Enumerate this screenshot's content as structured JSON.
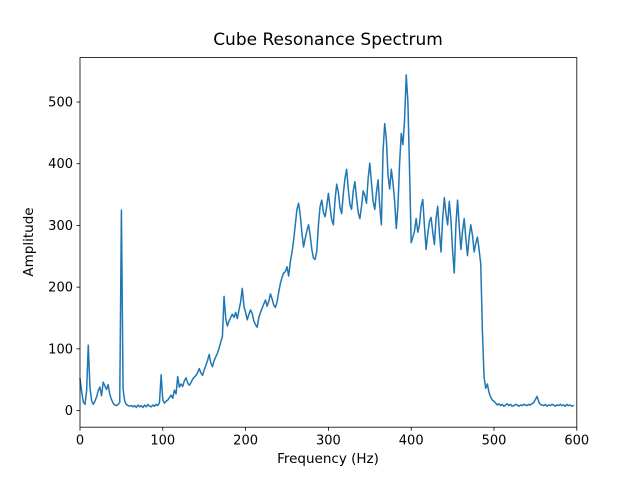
{
  "figure": {
    "background": "#ffffff",
    "line_color": "#1f77b4",
    "spine_color": "#000000",
    "text_color": "#000000"
  },
  "chart_data": {
    "type": "line",
    "title": "Cube Resonance Spectrum",
    "xlabel": "Frequency (Hz)",
    "ylabel": "Amplitude",
    "xlim": [
      0,
      600
    ],
    "ylim": [
      -27,
      572
    ],
    "xticks": [
      0,
      100,
      200,
      300,
      400,
      500,
      600
    ],
    "yticks": [
      0,
      100,
      200,
      300,
      400,
      500
    ],
    "grid": false,
    "legend": false,
    "series": [
      {
        "name": "spectrum",
        "color": "#1f77b4",
        "x": [
          0,
          2,
          4,
          6,
          8,
          10,
          12,
          14,
          16,
          18,
          20,
          22,
          24,
          26,
          28,
          30,
          32,
          34,
          36,
          38,
          40,
          42,
          44,
          46,
          48,
          50,
          52,
          54,
          56,
          58,
          60,
          62,
          64,
          66,
          68,
          70,
          72,
          74,
          76,
          78,
          80,
          82,
          84,
          86,
          88,
          90,
          92,
          94,
          96,
          98,
          100,
          102,
          104,
          106,
          108,
          110,
          112,
          114,
          116,
          118,
          120,
          122,
          124,
          126,
          128,
          130,
          132,
          134,
          136,
          138,
          140,
          142,
          144,
          146,
          148,
          150,
          152,
          154,
          156,
          158,
          160,
          162,
          164,
          166,
          168,
          170,
          172,
          174,
          176,
          178,
          180,
          182,
          184,
          186,
          188,
          190,
          192,
          194,
          196,
          198,
          200,
          202,
          204,
          206,
          208,
          210,
          212,
          214,
          216,
          218,
          220,
          222,
          224,
          226,
          228,
          230,
          232,
          234,
          236,
          238,
          240,
          242,
          244,
          246,
          248,
          250,
          252,
          254,
          256,
          258,
          260,
          262,
          264,
          266,
          268,
          270,
          272,
          274,
          276,
          278,
          280,
          282,
          284,
          286,
          288,
          290,
          292,
          294,
          296,
          298,
          300,
          302,
          304,
          306,
          308,
          310,
          312,
          314,
          316,
          318,
          320,
          322,
          324,
          326,
          328,
          330,
          332,
          334,
          336,
          338,
          340,
          342,
          344,
          346,
          348,
          350,
          352,
          354,
          356,
          358,
          360,
          362,
          364,
          366,
          368,
          370,
          372,
          374,
          376,
          378,
          380,
          382,
          384,
          386,
          388,
          390,
          392,
          394,
          396,
          398,
          400,
          402,
          404,
          406,
          408,
          410,
          412,
          414,
          416,
          418,
          420,
          422,
          424,
          426,
          428,
          430,
          432,
          434,
          436,
          438,
          440,
          442,
          444,
          446,
          448,
          450,
          452,
          454,
          456,
          458,
          460,
          462,
          464,
          466,
          468,
          470,
          472,
          474,
          476,
          478,
          480,
          482,
          484,
          486,
          488,
          490,
          492,
          494,
          496,
          498,
          500,
          502,
          504,
          506,
          508,
          510,
          512,
          514,
          516,
          518,
          520,
          522,
          524,
          526,
          528,
          530,
          532,
          534,
          536,
          538,
          540,
          542,
          544,
          546,
          548,
          550,
          552,
          554,
          556,
          558,
          560,
          562,
          564,
          566,
          568,
          570,
          572,
          574,
          576,
          578,
          580,
          582,
          584,
          586,
          588,
          590,
          592,
          594,
          596
        ],
        "y": [
          52,
          30,
          14,
          10,
          32,
          106,
          38,
          16,
          10,
          15,
          22,
          32,
          38,
          24,
          46,
          40,
          34,
          42,
          26,
          18,
          12,
          9,
          8,
          10,
          13,
          325,
          35,
          15,
          10,
          8,
          7,
          8,
          6,
          8,
          5,
          9,
          6,
          8,
          5,
          9,
          6,
          10,
          7,
          6,
          9,
          7,
          10,
          8,
          13,
          58,
          17,
          12,
          15,
          17,
          21,
          25,
          20,
          33,
          27,
          55,
          38,
          43,
          39,
          48,
          53,
          45,
          41,
          45,
          51,
          54,
          57,
          61,
          68,
          61,
          57,
          66,
          73,
          81,
          91,
          77,
          71,
          81,
          87,
          93,
          101,
          111,
          120,
          185,
          149,
          137,
          145,
          151,
          156,
          151,
          159,
          149,
          163,
          176,
          198,
          169,
          159,
          147,
          156,
          163,
          157,
          145,
          139,
          135,
          151,
          159,
          166,
          173,
          179,
          169,
          177,
          189,
          181,
          171,
          167,
          176,
          192,
          206,
          216,
          223,
          225,
          233,
          218,
          241,
          256,
          276,
          301,
          326,
          336,
          317,
          288,
          265,
          279,
          291,
          301,
          284,
          261,
          247,
          245,
          259,
          301,
          331,
          341,
          321,
          314,
          331,
          352,
          329,
          309,
          301,
          341,
          367,
          354,
          329,
          319,
          351,
          376,
          391,
          359,
          334,
          326,
          356,
          371,
          344,
          321,
          311,
          331,
          356,
          349,
          336,
          376,
          401,
          369,
          339,
          326,
          353,
          374,
          331,
          301,
          421,
          465,
          439,
          381,
          359,
          391,
          369,
          339,
          295,
          331,
          401,
          449,
          431,
          471,
          544,
          500,
          390,
          272,
          281,
          291,
          311,
          289,
          301,
          331,
          342,
          299,
          261,
          286,
          306,
          313,
          289,
          269,
          311,
          331,
          289,
          257,
          311,
          345,
          319,
          301,
          339,
          309,
          259,
          223,
          301,
          341,
          299,
          261,
          291,
          311,
          279,
          251,
          281,
          301,
          284,
          257,
          271,
          281,
          261,
          237,
          129,
          54,
          36,
          43,
          29,
          22,
          17,
          15,
          12,
          9,
          11,
          8,
          10,
          7,
          9,
          11,
          8,
          10,
          7,
          8,
          10,
          9,
          7,
          9,
          8,
          10,
          9,
          8,
          10,
          9,
          11,
          13,
          18,
          23,
          14,
          10,
          9,
          8,
          10,
          7,
          9,
          8,
          10,
          9,
          7,
          9,
          8,
          10,
          8,
          9,
          7,
          10,
          8,
          9,
          7,
          8
        ]
      }
    ]
  }
}
